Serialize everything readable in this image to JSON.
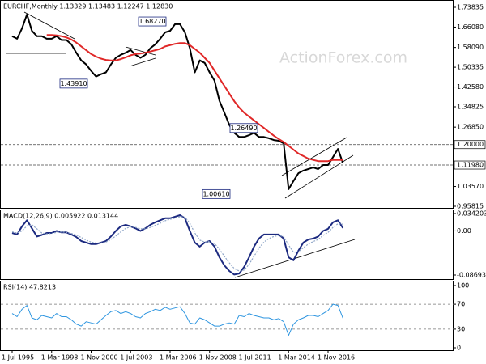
{
  "chart_data": [
    {
      "type": "line",
      "title": "EURCHF,Monthly 1.13329 1.13483 1.12247 1.12830",
      "watermark": "ActionForex.com",
      "ylim": [
        0.95815,
        1.73835
      ],
      "yticks": [
        1.73835,
        {
          "value": 1.6608,
          "label": "1.66080"
        },
        {
          "value": 1.5809,
          "label": "1.58090"
        },
        1.50335,
        {
          "value": 1.4258,
          "label": "1.42580"
        },
        1.34825,
        {
          "value": 1.2685,
          "label": "1.26850"
        },
        {
          "value": 1.0357,
          "label": "1.03570"
        },
        0.95815
      ],
      "grid": false,
      "series": [
        {
          "color": "#000000",
          "values": [
            1.625,
            1.615,
            1.656,
            1.71,
            1.646,
            1.625,
            1.625,
            1.615,
            1.615,
            1.625,
            1.61,
            1.61,
            1.593,
            1.56,
            1.53,
            1.514,
            1.489,
            1.467,
            1.476,
            1.483,
            1.514,
            1.54,
            1.552,
            1.56,
            1.571,
            1.552,
            1.54,
            1.552,
            1.578,
            1.593,
            1.615,
            1.64,
            1.646,
            1.672,
            1.672,
            1.64,
            1.578,
            1.483,
            1.53,
            1.52,
            1.483,
            1.451,
            1.372,
            1.325,
            1.277,
            1.246,
            1.23,
            1.23,
            1.237,
            1.246,
            1.23,
            1.23,
            1.225,
            1.218,
            1.215,
            1.205,
            1.025,
            1.057,
            1.088,
            1.098,
            1.104,
            1.11,
            1.104,
            1.12,
            1.12,
            1.151,
            1.183,
            1.128
          ]
        },
        {
          "color": "#e02828",
          "values": [
            null,
            null,
            null,
            null,
            null,
            null,
            null,
            1.63,
            1.63,
            1.628,
            1.625,
            1.62,
            1.612,
            1.6,
            1.585,
            1.57,
            1.555,
            1.545,
            1.537,
            1.532,
            1.53,
            1.53,
            1.535,
            1.542,
            1.55,
            1.555,
            1.557,
            1.56,
            1.565,
            1.57,
            1.575,
            1.585,
            1.59,
            1.595,
            1.598,
            1.598,
            1.59,
            1.575,
            1.56,
            1.54,
            1.52,
            1.49,
            1.46,
            1.43,
            1.4,
            1.37,
            1.345,
            1.325,
            1.31,
            1.295,
            1.28,
            1.265,
            1.25,
            1.235,
            1.222,
            1.21,
            1.195,
            1.18,
            1.165,
            1.155,
            1.145,
            1.14,
            1.135,
            1.135,
            1.135,
            1.14,
            1.14,
            1.14
          ]
        }
      ],
      "annotations": [
        {
          "value": 1.6827,
          "label": "1.68270"
        },
        {
          "value": 1.4391,
          "label": "1.43910"
        },
        {
          "value": 1.2649,
          "label": "1.26490"
        },
        {
          "value": 1.0061,
          "label": "1.00610"
        }
      ],
      "levels": [
        {
          "value": 1.2,
          "label": "1.20000"
        },
        {
          "value": 1.1198,
          "label": "1.11980"
        }
      ]
    },
    {
      "type": "line",
      "title": "MACD(12,26,9) 0.005922 0.013144",
      "ylim": [
        -0.086933,
        0.034203
      ],
      "yticks": [
        0.034203,
        {
          "value": 0,
          "label": "0.00"
        },
        -0.086933
      ],
      "grid": true,
      "series": [
        {
          "color": "#1c2a80",
          "values": [
            -0.004,
            -0.007,
            0.009,
            0.021,
            0.005,
            -0.011,
            -0.008,
            -0.004,
            -0.004,
            0,
            -0.003,
            -0.003,
            -0.007,
            -0.012,
            -0.02,
            -0.023,
            -0.026,
            -0.026,
            -0.023,
            -0.02,
            -0.011,
            0,
            0.009,
            0.012,
            0.009,
            0.005,
            0,
            0.005,
            0.012,
            0.017,
            0.021,
            0.025,
            0.025,
            0.028,
            0.031,
            0.025,
            0,
            -0.023,
            -0.031,
            -0.023,
            -0.02,
            -0.031,
            -0.052,
            -0.068,
            -0.079,
            -0.086,
            -0.084,
            -0.071,
            -0.052,
            -0.031,
            -0.015,
            -0.007,
            -0.007,
            -0.007,
            -0.007,
            -0.015,
            -0.052,
            -0.058,
            -0.039,
            -0.023,
            -0.017,
            -0.015,
            -0.011,
            0,
            0.004,
            0.017,
            0.021,
            0.0059
          ]
        },
        {
          "color": "#8fa6c8",
          "values": [
            -0.002,
            -0.004,
            0,
            0.01,
            0.012,
            0.004,
            -0.004,
            -0.006,
            -0.005,
            -0.003,
            -0.002,
            -0.003,
            -0.005,
            -0.008,
            -0.013,
            -0.018,
            -0.022,
            -0.024,
            -0.024,
            -0.022,
            -0.017,
            -0.01,
            -0.002,
            0.005,
            0.008,
            0.007,
            0.004,
            0.004,
            0.007,
            0.011,
            0.015,
            0.02,
            0.023,
            0.025,
            0.028,
            0.027,
            0.015,
            -0.004,
            -0.018,
            -0.022,
            -0.021,
            -0.025,
            -0.036,
            -0.05,
            -0.063,
            -0.074,
            -0.079,
            -0.077,
            -0.066,
            -0.05,
            -0.034,
            -0.022,
            -0.015,
            -0.011,
            -0.009,
            -0.011,
            -0.028,
            -0.042,
            -0.041,
            -0.033,
            -0.026,
            -0.021,
            -0.017,
            -0.009,
            -0.003,
            0.007,
            0.014,
            0.0131
          ]
        }
      ]
    },
    {
      "type": "line",
      "title": "RSI(14) 47.8213",
      "ylim": [
        0,
        100
      ],
      "yticks": [
        100,
        70,
        30,
        0
      ],
      "grid": true,
      "categories": [
        "1 Jul 1995",
        null,
        null,
        null,
        null,
        null,
        null,
        null,
        "1 Mar 1998",
        null,
        null,
        null,
        null,
        null,
        null,
        null,
        "1 Nov 2000",
        null,
        null,
        null,
        null,
        null,
        null,
        null,
        "1 Jul 2003",
        null,
        null,
        null,
        null,
        null,
        null,
        null,
        "1 Mar 2006",
        null,
        null,
        null,
        null,
        null,
        null,
        null,
        "1 Nov 2008",
        null,
        null,
        null,
        null,
        null,
        null,
        null,
        "1 Jul 2011",
        null,
        null,
        null,
        null,
        null,
        null,
        null,
        "1 Mar 2014",
        null,
        null,
        null,
        null,
        null,
        null,
        null,
        "1 Nov 2016",
        null,
        null,
        null
      ],
      "series": [
        {
          "color": "#2f96e0",
          "values": [
            55,
            50,
            62,
            68,
            48,
            45,
            52,
            50,
            48,
            55,
            50,
            50,
            45,
            38,
            35,
            42,
            40,
            38,
            45,
            52,
            58,
            60,
            55,
            58,
            55,
            50,
            48,
            55,
            58,
            62,
            60,
            65,
            62,
            64,
            66,
            55,
            40,
            38,
            48,
            45,
            40,
            35,
            35,
            38,
            40,
            38,
            52,
            50,
            55,
            52,
            50,
            48,
            48,
            45,
            47,
            42,
            20,
            38,
            45,
            48,
            52,
            52,
            50,
            55,
            60,
            70,
            68,
            47.8213
          ]
        }
      ]
    }
  ]
}
